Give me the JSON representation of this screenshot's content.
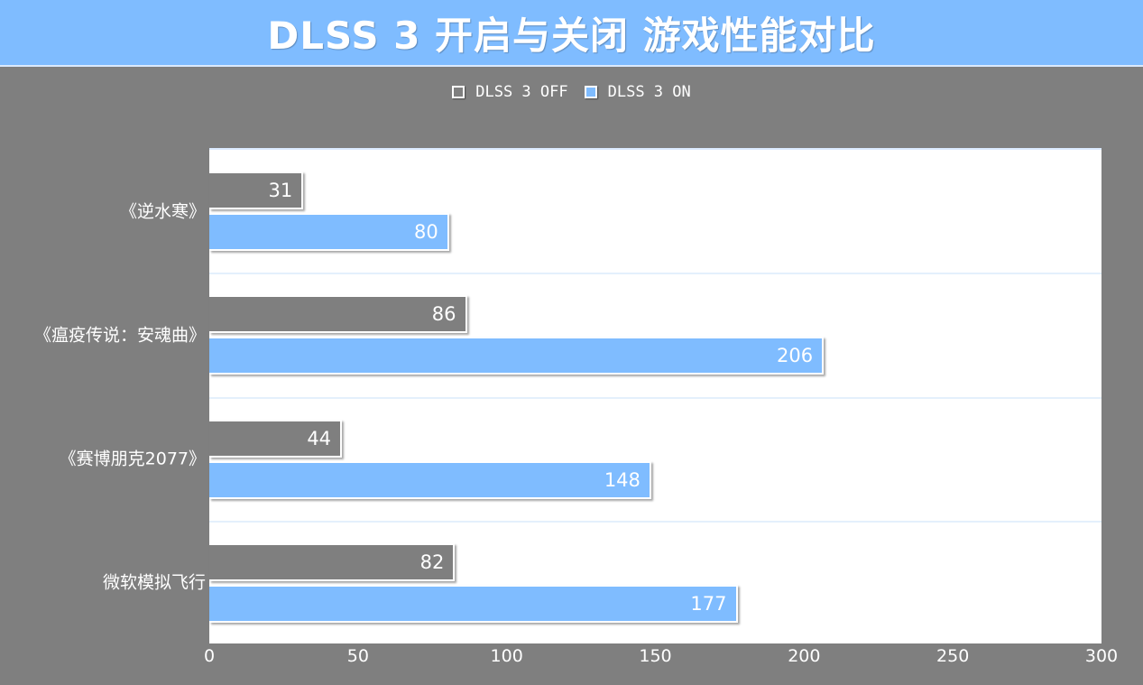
{
  "title": "DLSS 3 开启与关闭 游戏性能对比",
  "colors": {
    "off": "#7f7f7f",
    "on": "#7fbcff",
    "background": "#7f7f7f",
    "plot": "#ffffff"
  },
  "legend": [
    {
      "label": "DLSS 3 OFF",
      "color": "#7f7f7f"
    },
    {
      "label": "DLSS 3 ON",
      "color": "#7fbcff"
    }
  ],
  "chart_data": {
    "type": "bar",
    "orientation": "horizontal",
    "title": "DLSS 3 开启与关闭 游戏性能对比",
    "categories": [
      "《逆水寒》",
      "《瘟疫传说：安魂曲》",
      "《赛博朋克2077》",
      "微软模拟飞行"
    ],
    "series": [
      {
        "name": "DLSS 3 OFF",
        "values": [
          31,
          86,
          44,
          82
        ]
      },
      {
        "name": "DLSS 3 ON",
        "values": [
          80,
          206,
          148,
          177
        ]
      }
    ],
    "xlabel": "",
    "ylabel": "",
    "xlim": [
      0,
      300
    ],
    "xticks": [
      "0",
      "50",
      "100",
      "150",
      "200",
      "250",
      "300"
    ],
    "data_labels": true,
    "legend_position": "top",
    "grid": "horizontal category separators"
  }
}
